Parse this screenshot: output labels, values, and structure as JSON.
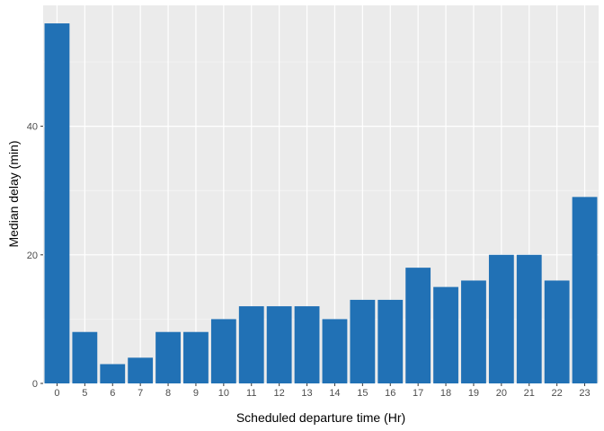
{
  "chart_data": {
    "type": "bar",
    "title": "",
    "xlabel": "Scheduled departure time (Hr)",
    "ylabel": "Median delay (min)",
    "categories": [
      "0",
      "5",
      "6",
      "7",
      "8",
      "9",
      "10",
      "11",
      "12",
      "13",
      "14",
      "15",
      "16",
      "17",
      "18",
      "19",
      "20",
      "21",
      "22",
      "23"
    ],
    "values": [
      56,
      8,
      3,
      4,
      8,
      8,
      10,
      12,
      12,
      12,
      10,
      13,
      13,
      18,
      15,
      16,
      20,
      20,
      16,
      29
    ],
    "ylim": [
      0,
      58.8
    ],
    "yticks": [
      "0",
      "20",
      "40"
    ],
    "grid": true,
    "colors": {
      "bar": "#2171b5",
      "panel": "#ebebeb",
      "grid_major": "#ffffff",
      "grid_minor": "#f5f5f5"
    }
  }
}
